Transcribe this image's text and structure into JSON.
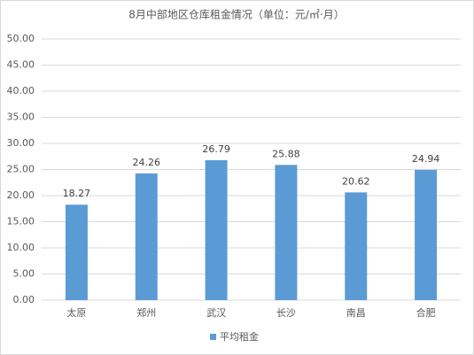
{
  "chart_data": {
    "type": "bar",
    "title": "8月中部地区仓库租金情况（单位：元/㎡·月）",
    "categories": [
      "太原",
      "郑州",
      "武汉",
      "长沙",
      "南昌",
      "合肥"
    ],
    "series": [
      {
        "name": "平均租金",
        "color": "#5b9bd5",
        "values": [
          18.27,
          24.26,
          26.79,
          25.88,
          20.62,
          24.94
        ]
      }
    ],
    "ylim": [
      0,
      50
    ],
    "yticks": [
      {
        "value": 0,
        "label": "0.00"
      },
      {
        "value": 5,
        "label": "5.00"
      },
      {
        "value": 10,
        "label": "10.00"
      },
      {
        "value": 15,
        "label": "15.00"
      },
      {
        "value": 20,
        "label": "20.00"
      },
      {
        "value": 25,
        "label": "25.00"
      },
      {
        "value": 30,
        "label": "30.00"
      },
      {
        "value": 35,
        "label": "35.00"
      },
      {
        "value": 40,
        "label": "40.00"
      },
      {
        "value": 45,
        "label": "45.00"
      },
      {
        "value": 50,
        "label": "50.00"
      }
    ],
    "grid": true,
    "legend": "bottom"
  }
}
